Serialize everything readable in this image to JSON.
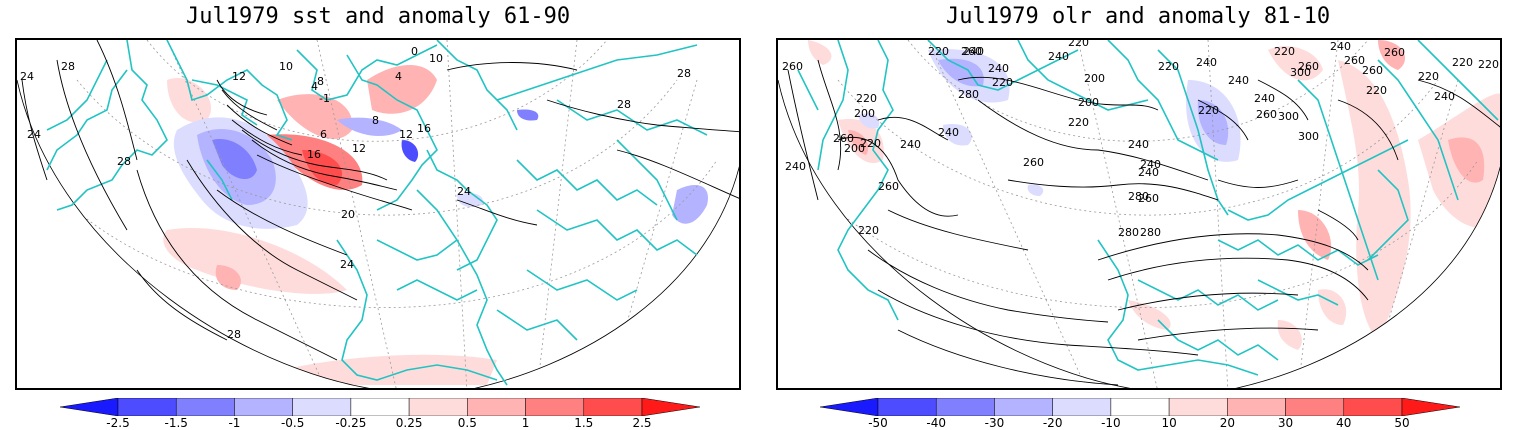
{
  "left_map": {
    "title": "Jul1979 sst and anomaly 61-90",
    "contour_labels": [
      "24",
      "28",
      "28",
      "12",
      "10",
      "8",
      "4",
      "0",
      "10",
      "-1",
      "4",
      "8",
      "6",
      "12",
      "16",
      "12",
      "16",
      "28",
      "20",
      "24",
      "24",
      "28",
      "28",
      "24"
    ],
    "colorbar": {
      "ticks": [
        "-2.5",
        "-1.5",
        "-1",
        "-0.5",
        "-0.25",
        "0.25",
        "0.5",
        "1",
        "1.5",
        "2.5"
      ],
      "colors": [
        "#1a1aff",
        "#4d4dff",
        "#8080ff",
        "#b3b3ff",
        "#dcdcff",
        "#ffffff",
        "#ffdcdc",
        "#ffb3b3",
        "#ff8080",
        "#ff4d4d",
        "#ff1a1a"
      ]
    }
  },
  "right_map": {
    "title": "Jul1979 olr and anomaly 81-10",
    "contour_labels": [
      "260",
      "240",
      "220",
      "240",
      "260",
      "240",
      "220",
      "280",
      "260",
      "240",
      "220",
      "200",
      "220",
      "260",
      "220",
      "200",
      "240",
      "260",
      "240",
      "220",
      "200",
      "220",
      "240",
      "200",
      "220",
      "240",
      "300",
      "220",
      "260",
      "240",
      "260",
      "220",
      "240",
      "240",
      "280",
      "300",
      "240",
      "300",
      "260",
      "280",
      "240",
      "260",
      "220",
      "260",
      "220",
      "220",
      "260",
      "240",
      "220",
      "280"
    ],
    "colorbar": {
      "ticks": [
        "-50",
        "-40",
        "-30",
        "-20",
        "-10",
        "10",
        "20",
        "30",
        "40",
        "50"
      ],
      "colors": [
        "#1a1aff",
        "#4d4dff",
        "#8080ff",
        "#b3b3ff",
        "#dcdcff",
        "#ffffff",
        "#ffdcdc",
        "#ffb3b3",
        "#ff8080",
        "#ff4d4d",
        "#ff1a1a"
      ]
    }
  },
  "colors": {
    "coastline": "#22c3c3",
    "contour": "#000000",
    "grid": "#9a9a9a"
  }
}
